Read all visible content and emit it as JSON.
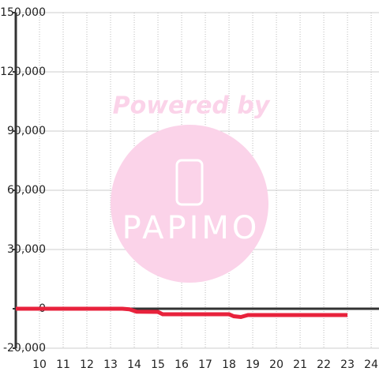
{
  "chart_data": {
    "type": "line",
    "watermark": {
      "title": "Powered by",
      "brand": "PAPIMO"
    },
    "x": [
      9,
      13.5,
      13.8,
      14.1,
      15,
      15.2,
      18,
      18.2,
      18.5,
      18.8,
      23
    ],
    "series": [
      {
        "color": "#e8223c",
        "values": [
          0,
          0,
          -300,
          -1500,
          -1600,
          -2800,
          -2800,
          -3800,
          -4200,
          -3200,
          -3200
        ]
      }
    ],
    "xlim": [
      9,
      24.33
    ],
    "xticks": [
      10,
      11,
      12,
      13,
      14,
      15,
      16,
      17,
      18,
      19,
      20,
      21,
      22,
      23,
      24
    ],
    "ylim": [
      -20000,
      150000
    ],
    "yticks": [
      {
        "value": -20000,
        "label": "-20,000"
      },
      0,
      {
        "value": 30000,
        "label": "30,000"
      },
      {
        "value": 60000,
        "label": "60,000"
      },
      {
        "value": 90000,
        "label": "90,000"
      },
      {
        "value": 120000,
        "label": "120,000"
      },
      {
        "value": 150000,
        "label": "150,000"
      }
    ],
    "grid": true
  }
}
